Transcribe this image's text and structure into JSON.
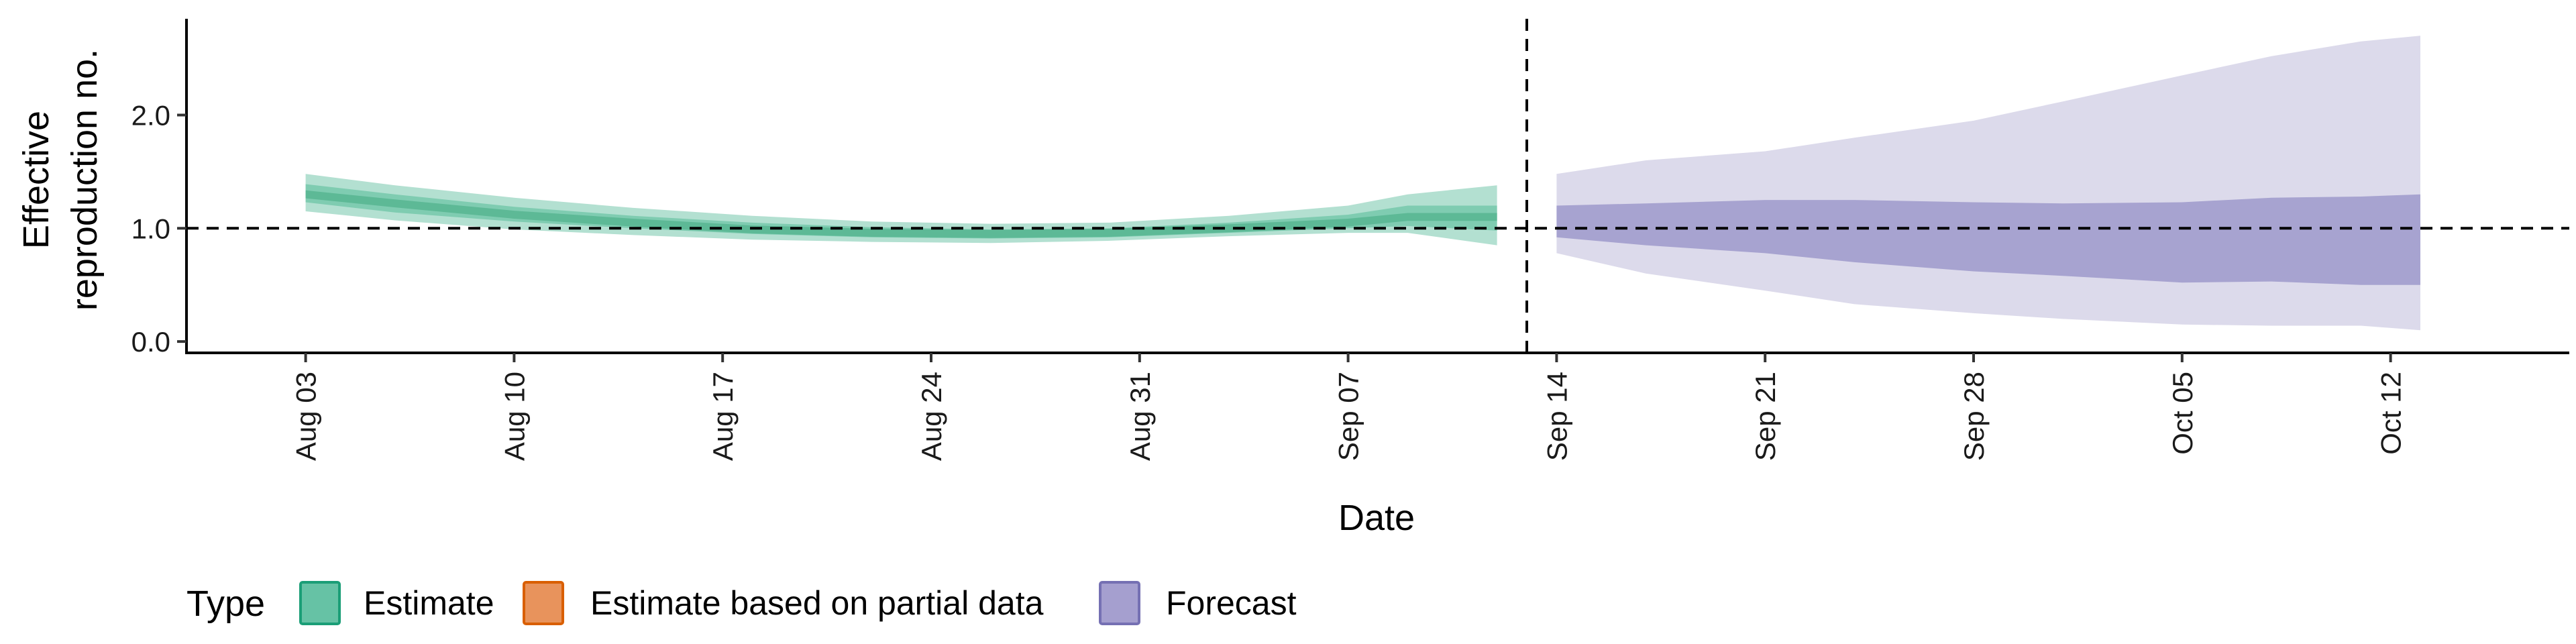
{
  "chart_data": {
    "type": "area",
    "title": "",
    "xlabel": "Date",
    "ylabel_lines": [
      "Effective",
      "reproduction no."
    ],
    "ylim": [
      -0.1,
      2.85
    ],
    "yticks": [
      0.0,
      1.0,
      2.0
    ],
    "ytick_labels": [
      "0.0",
      "1.0",
      "2.0"
    ],
    "x_start": "2020-07-30",
    "x_end": "2020-10-18",
    "xticks": [
      "2020-08-03",
      "2020-08-10",
      "2020-08-17",
      "2020-08-24",
      "2020-08-31",
      "2020-09-07",
      "2020-09-14",
      "2020-09-21",
      "2020-09-28",
      "2020-10-05",
      "2020-10-12"
    ],
    "xtick_labels": [
      "Aug 03",
      "Aug 10",
      "Aug 17",
      "Aug 24",
      "Aug 31",
      "Sep 07",
      "Sep 14",
      "Sep 21",
      "Sep 28",
      "Oct 05",
      "Oct 12"
    ],
    "reference_line_y": 1.0,
    "forecast_start_line_x": "2020-09-13",
    "grid": false,
    "legend": {
      "title": "Type",
      "position": "bottom-left",
      "entries": [
        {
          "label": "Estimate",
          "fill": "#66C2A5",
          "border": "#1B9E77"
        },
        {
          "label": "Estimate based on partial data",
          "fill": "#E8935C",
          "border": "#D95F02"
        },
        {
          "label": "Forecast",
          "fill": "#A59FCF",
          "border": "#7570B3"
        }
      ]
    },
    "series": [
      {
        "name": "Estimate",
        "color_outer": "#B3E0D1",
        "color_inner": "#7FCCB1",
        "color_core": "#5DB996",
        "dates": [
          "2020-08-03",
          "2020-08-06",
          "2020-08-10",
          "2020-08-14",
          "2020-08-18",
          "2020-08-22",
          "2020-08-26",
          "2020-08-30",
          "2020-09-03",
          "2020-09-07",
          "2020-09-09",
          "2020-09-12"
        ],
        "median": [
          1.3,
          1.22,
          1.12,
          1.05,
          0.99,
          0.96,
          0.95,
          0.96,
          1.0,
          1.05,
          1.1,
          1.1
        ],
        "lower_90": [
          1.15,
          1.07,
          0.99,
          0.94,
          0.9,
          0.88,
          0.87,
          0.89,
          0.93,
          0.96,
          0.96,
          0.85
        ],
        "upper_90": [
          1.48,
          1.38,
          1.27,
          1.18,
          1.11,
          1.06,
          1.04,
          1.05,
          1.11,
          1.2,
          1.3,
          1.38
        ],
        "lower_50": [
          1.23,
          1.14,
          1.06,
          1.0,
          0.95,
          0.92,
          0.91,
          0.92,
          0.96,
          1.0,
          1.02,
          0.98
        ],
        "upper_50": [
          1.39,
          1.3,
          1.19,
          1.11,
          1.05,
          1.01,
          0.99,
          1.0,
          1.05,
          1.12,
          1.2,
          1.2
        ]
      },
      {
        "name": "Forecast",
        "color_outer": "#DCDAEB",
        "color_inner": "#A7A3D0",
        "dates": [
          "2020-09-14",
          "2020-09-17",
          "2020-09-21",
          "2020-09-24",
          "2020-09-28",
          "2020-10-01",
          "2020-10-05",
          "2020-10-08",
          "2020-10-11",
          "2020-10-13"
        ],
        "lower_90": [
          0.78,
          0.6,
          0.45,
          0.33,
          0.25,
          0.2,
          0.15,
          0.14,
          0.14,
          0.1
        ],
        "upper_90": [
          1.48,
          1.6,
          1.68,
          1.8,
          1.95,
          2.12,
          2.35,
          2.52,
          2.65,
          2.7
        ],
        "lower_50": [
          0.92,
          0.85,
          0.78,
          0.7,
          0.62,
          0.58,
          0.52,
          0.53,
          0.5,
          0.5
        ],
        "upper_50": [
          1.2,
          1.22,
          1.25,
          1.25,
          1.23,
          1.22,
          1.23,
          1.27,
          1.28,
          1.3
        ]
      }
    ]
  }
}
